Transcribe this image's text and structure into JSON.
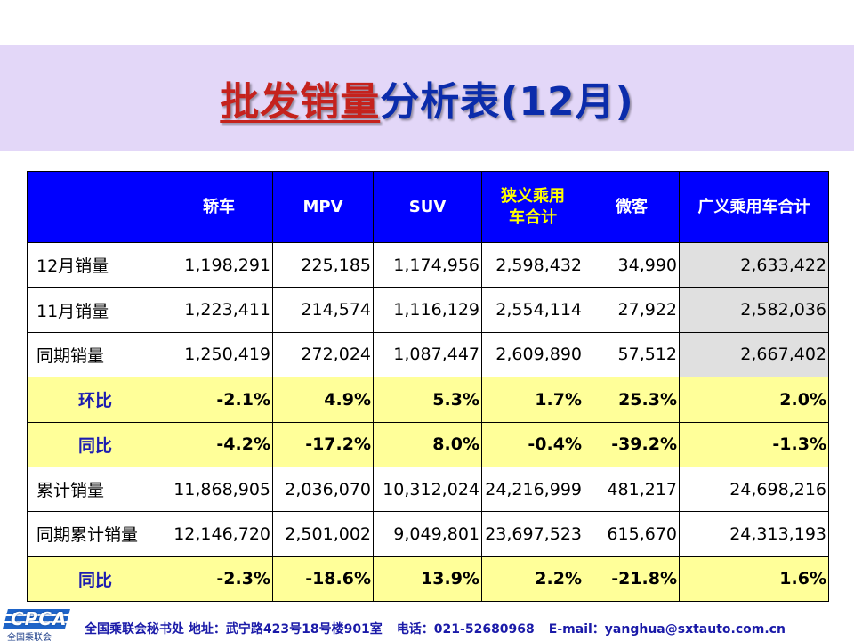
{
  "title": {
    "part1": "批发销量",
    "part2": "分析表(12月)"
  },
  "table": {
    "headers": [
      "轿车",
      "MPV",
      "SUV",
      "狭义乘用车合计",
      "微客",
      "广义乘用车合计"
    ],
    "header_highlight_index": 3,
    "rows": [
      {
        "label": "12月销量",
        "type": "volume",
        "values": [
          "1,198,291",
          "225,185",
          "1,174,956",
          "2,598,432",
          "34,990",
          "2,633,422"
        ]
      },
      {
        "label": "11月销量",
        "type": "volume",
        "values": [
          "1,223,411",
          "214,574",
          "1,116,129",
          "2,554,114",
          "27,922",
          "2,582,036"
        ]
      },
      {
        "label": "同期销量",
        "type": "volume",
        "values": [
          "1,250,419",
          "272,024",
          "1,087,447",
          "2,609,890",
          "57,512",
          "2,667,402"
        ]
      },
      {
        "label": "环比",
        "type": "ratio",
        "values": [
          "-2.1%",
          "4.9%",
          "5.3%",
          "1.7%",
          "25.3%",
          "2.0%"
        ]
      },
      {
        "label": "同比",
        "type": "ratio",
        "values": [
          "-4.2%",
          "-17.2%",
          "8.0%",
          "-0.4%",
          "-39.2%",
          "-1.3%"
        ]
      },
      {
        "label": "累计销量",
        "type": "cumulative",
        "values": [
          "11,868,905",
          "2,036,070",
          "10,312,024",
          "24,216,999",
          "481,217",
          "24,698,216"
        ]
      },
      {
        "label": "同期累计销量",
        "type": "cumulative",
        "values": [
          "12,146,720",
          "2,501,002",
          "9,049,801",
          "23,697,523",
          "615,670",
          "24,313,193"
        ]
      },
      {
        "label": "同比",
        "type": "ratio",
        "values": [
          "-2.3%",
          "-18.6%",
          "13.9%",
          "2.2%",
          "-21.8%",
          "1.6%"
        ]
      }
    ]
  },
  "footer": {
    "logo_text": "CPCA",
    "logo_org": "全国乘联会",
    "contact": {
      "org_address": "全国乘联会秘书处  地址：武宁路423号18号楼901室",
      "phone": "电话：021-52680968",
      "email": "E-mail：yanghua@sxtauto.com.cn"
    }
  },
  "colors": {
    "header_bg": "#0000ff",
    "header_text": "#ffffff",
    "header_highlight": "#ffff00",
    "ratio_row_bg": "#ffff99",
    "ratio_label": "#1c1cb0",
    "negative": "#118a11",
    "positive": "#e00000",
    "total_col_bg": "#e0e0e0",
    "title_band": "#e3d7f8",
    "title_part1": "#c5221d",
    "title_part2": "#0b2cab"
  }
}
